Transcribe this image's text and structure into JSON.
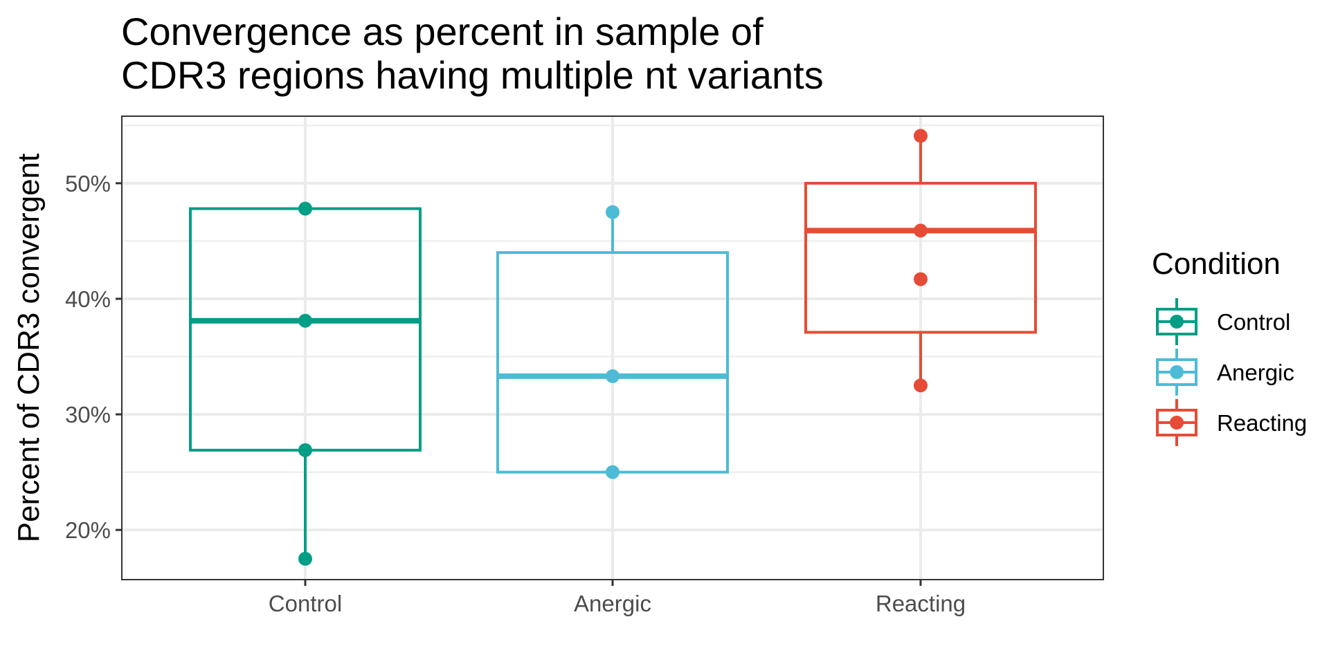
{
  "chart_data": {
    "type": "boxplot",
    "title_lines": [
      "Convergence as percent  in sample of",
      "CDR3 regions having multiple nt variants"
    ],
    "xlabel": "",
    "ylabel": "Percent of CDR3 convergent",
    "categories": [
      "Control",
      "Anergic",
      "Reacting"
    ],
    "ylim": [
      15.7,
      55.8
    ],
    "y_ticks": [
      20,
      30,
      40,
      50
    ],
    "y_tick_labels": [
      "20%",
      "30%",
      "40%",
      "50%"
    ],
    "grid": true,
    "legend": {
      "title": "Condition",
      "placement": "right",
      "entries": [
        "Control",
        "Anergic",
        "Reacting"
      ]
    },
    "colors": {
      "Control": "#009E84",
      "Anergic": "#4DBBD5",
      "Reacting": "#E64B35"
    },
    "series": [
      {
        "name": "Control",
        "box": {
          "whisker_low": 17.5,
          "q1": 26.9,
          "median": 38.1,
          "q3": 47.8,
          "whisker_high": 47.8
        },
        "points": [
          47.8,
          38.1,
          26.9,
          17.5
        ]
      },
      {
        "name": "Anergic",
        "box": {
          "whisker_low": 25.0,
          "q1": 25.0,
          "median": 33.3,
          "q3": 44.0,
          "whisker_high": 47.5
        },
        "points": [
          47.5,
          33.3,
          25.0
        ]
      },
      {
        "name": "Reacting",
        "box": {
          "whisker_low": 32.5,
          "q1": 37.1,
          "median": 45.9,
          "q3": 50.0,
          "whisker_high": 54.1
        },
        "points": [
          54.1,
          45.9,
          41.7,
          32.5
        ]
      }
    ]
  }
}
